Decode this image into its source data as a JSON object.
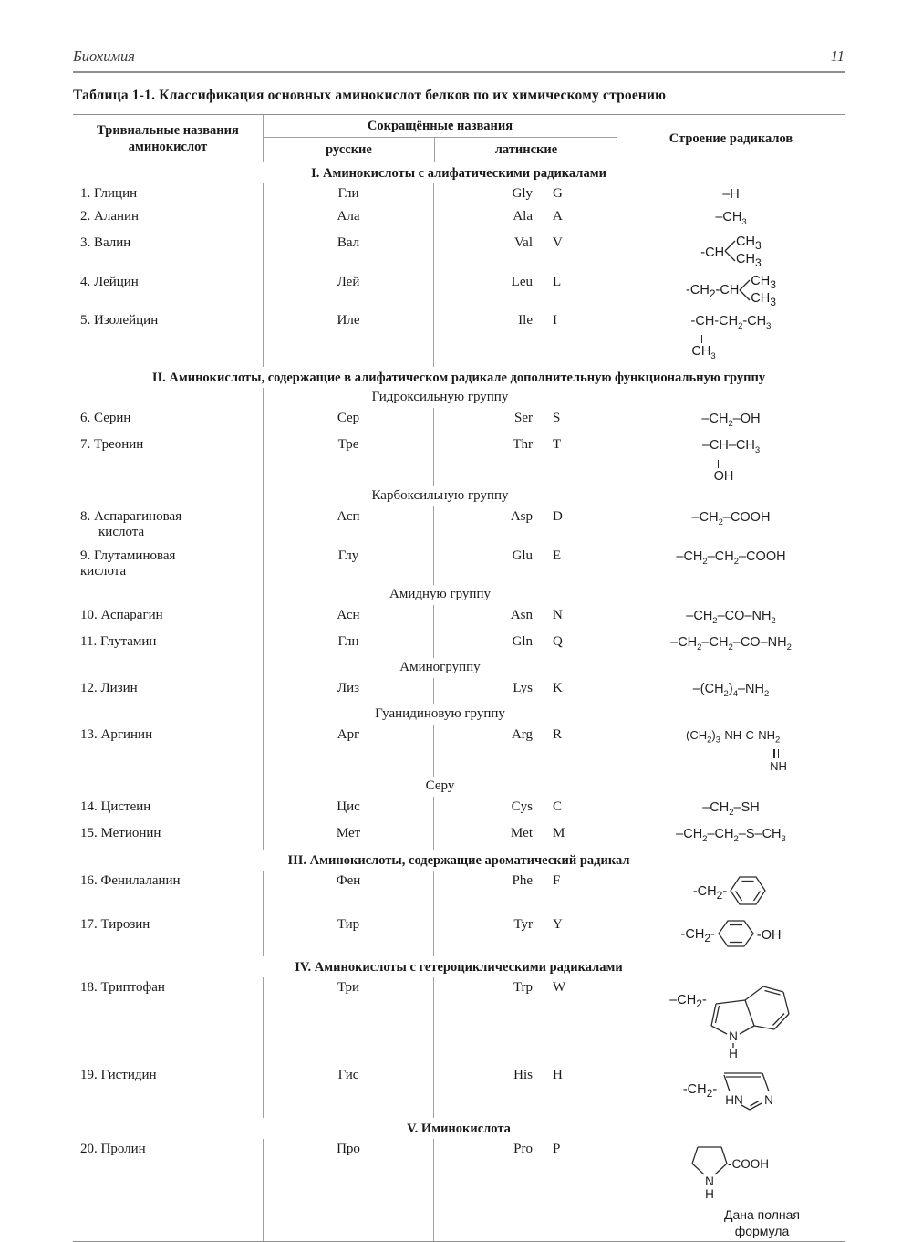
{
  "page": {
    "running_head": "Биохимия",
    "page_number": "11",
    "caption": "Таблица 1-1. Классификация основных аминокислот белков по их химическому строению"
  },
  "table": {
    "header": {
      "col1_line1": "Тривиальные названия",
      "col1_line2": "аминокислот",
      "abbr_group": "Сокращённые названия",
      "col_rus": "русские",
      "col_lat": "латинские",
      "col4": "Строение радикалов"
    },
    "sections": [
      {
        "title": "I. Аминокислоты с алифатическими радикалами",
        "groups": [
          {
            "rows": [
              {
                "id": 1,
                "num": "1.",
                "name": "Глицин",
                "rus": "Гли",
                "lat": "Gly",
                "letter": "G",
                "radical": {
                  "kind": "lines",
                  "lines": [
                    "–H"
                  ]
                }
              },
              {
                "id": 2,
                "num": "2.",
                "name": "Аланин",
                "rus": "Ала",
                "lat": "Ala",
                "letter": "A",
                "radical": {
                  "kind": "lines",
                  "lines": [
                    "–CH3"
                  ]
                }
              },
              {
                "id": 3,
                "num": "3.",
                "name": "Валин",
                "rus": "Вал",
                "lat": "Val",
                "letter": "V",
                "radical": {
                  "kind": "branch",
                  "prefix": "-CH",
                  "top": "CH3",
                  "bottom": "CH3"
                }
              },
              {
                "id": 4,
                "num": "4.",
                "name": "Лейцин",
                "rus": "Лей",
                "lat": "Leu",
                "letter": "L",
                "radical": {
                  "kind": "branch",
                  "prefix": "-CH2-CH ",
                  "top": "CH3",
                  "bottom": "CH3"
                }
              },
              {
                "id": 5,
                "num": "5.",
                "name": "Изолейцин",
                "rus": "Иле",
                "lat": "Ile",
                "letter": "I",
                "radical": {
                  "kind": "lines",
                  "lines": [
                    "-CH-CH2-CH3",
                    "|",
                    "CH3"
                  ]
                }
              }
            ]
          }
        ]
      },
      {
        "title": "II. Аминокислоты, содержащие в алифатическом радикале дополнительную функциональную группу",
        "groups": [
          {
            "subtitle": "Гидроксильную группу",
            "rows": [
              {
                "id": 6,
                "num": "6.",
                "name": "Серин",
                "rus": "Сер",
                "lat": "Ser",
                "letter": "S",
                "radical": {
                  "kind": "lines",
                  "lines": [
                    "–CH2–OH"
                  ]
                }
              },
              {
                "id": 7,
                "num": "7.",
                "name": "Треонин",
                "rus": "Тре",
                "lat": "Thr",
                "letter": "T",
                "radical": {
                  "kind": "lines",
                  "lines": [
                    "–CH–CH3",
                    "|",
                    "OH"
                  ]
                }
              }
            ]
          },
          {
            "subtitle": "Карбоксильную группу",
            "rows": [
              {
                "id": 8,
                "num": "8.",
                "name": "Аспарагиновая",
                "name2": "кислота",
                "indent2": true,
                "rus": "Асп",
                "lat": "Asp",
                "letter": "D",
                "radical": {
                  "kind": "lines",
                  "lines": [
                    "–CH2–COOH"
                  ]
                }
              },
              {
                "id": 9,
                "num": "9.",
                "name": "Глутаминовая",
                "name2": "кислота",
                "rus": "Глу",
                "lat": "Glu",
                "letter": "E",
                "radical": {
                  "kind": "lines",
                  "lines": [
                    "–CH2–CH2–COOH"
                  ]
                }
              }
            ]
          },
          {
            "subtitle": "Амидную группу",
            "rows": [
              {
                "id": 10,
                "num": "10.",
                "name": "Аспарагин",
                "rus": "Асн",
                "lat": "Asn",
                "letter": "N",
                "radical": {
                  "kind": "lines",
                  "lines": [
                    "–CH2–CO–NH2"
                  ]
                }
              },
              {
                "id": 11,
                "num": "11.",
                "name": "Глутамин",
                "rus": "Глн",
                "lat": "Gln",
                "letter": "Q",
                "radical": {
                  "kind": "lines",
                  "lines": [
                    "–CH2–CH2–CO–NH2"
                  ]
                }
              }
            ]
          },
          {
            "subtitle": "Аминогруппу",
            "rows": [
              {
                "id": 12,
                "num": "12.",
                "name": "Лизин",
                "rus": "Лиз",
                "lat": "Lys",
                "letter": "K",
                "radical": {
                  "kind": "lines",
                  "lines": [
                    "–(CH2)4–NH2"
                  ]
                }
              }
            ]
          },
          {
            "subtitle": "Гуанидиновую группу",
            "rows": [
              {
                "id": 13,
                "num": "13.",
                "name": "Аргинин",
                "rus": "Арг",
                "lat": "Arg",
                "letter": "R",
                "radical": {
                  "kind": "lines",
                  "small": true,
                  "lines": [
                    "-(CH2)3-NH-C-NH2",
                    "‖",
                    "NH"
                  ]
                }
              }
            ]
          },
          {
            "subtitle": "Серу",
            "rows": [
              {
                "id": 14,
                "num": "14.",
                "name": "Цистеин",
                "rus": "Цис",
                "lat": "Cys",
                "letter": "C",
                "radical": {
                  "kind": "lines",
                  "lines": [
                    "–CH2–SH"
                  ]
                }
              },
              {
                "id": 15,
                "num": "15.",
                "name": "Метионин",
                "rus": "Мет",
                "lat": "Met",
                "letter": "M",
                "radical": {
                  "kind": "lines",
                  "lines": [
                    "–CH2–CH2–S–CH3"
                  ]
                }
              }
            ]
          }
        ]
      },
      {
        "title": "III. Аминокислоты, содержащие ароматический радикал",
        "groups": [
          {
            "rows": [
              {
                "id": 16,
                "num": "16.",
                "name": "Фенилаланин",
                "rus": "Фен",
                "lat": "Phe",
                "letter": "F",
                "radical": {
                  "kind": "ring",
                  "ring": "benzene",
                  "prefix": "-CH2-"
                }
              },
              {
                "id": 17,
                "num": "17.",
                "name": "Тирозин",
                "rus": "Тир",
                "lat": "Tyr",
                "letter": "Y",
                "radical": {
                  "kind": "ring",
                  "ring": "phenol",
                  "prefix": "-CH2-",
                  "suffix": "-OH"
                }
              }
            ]
          }
        ]
      },
      {
        "title": "IV. Аминокислоты с гетероциклическими радикалами",
        "groups": [
          {
            "rows": [
              {
                "id": 18,
                "num": "18.",
                "name": "Триптофан",
                "rus": "Три",
                "lat": "Trp",
                "letter": "W",
                "radical": {
                  "kind": "ring",
                  "ring": "indole",
                  "prefix": "–CH2-",
                  "n": "N",
                  "h": "H"
                }
              },
              {
                "id": 19,
                "num": "19.",
                "name": "Гистидин",
                "rus": "Гис",
                "lat": "His",
                "letter": "H",
                "radical": {
                  "kind": "ring",
                  "ring": "imidazole",
                  "prefix": "-CH2-",
                  "hn": "HN",
                  "n": "N"
                }
              }
            ]
          }
        ]
      },
      {
        "title": "V. Иминокислота",
        "groups": [
          {
            "rows": [
              {
                "id": 20,
                "num": "20.",
                "name": "Пролин",
                "rus": "Про",
                "lat": "Pro",
                "letter": "P",
                "radical": {
                  "kind": "pro",
                  "suffix": "-COOH",
                  "n": "N",
                  "h": "H",
                  "note": [
                    "Дана полная",
                    "формула"
                  ]
                }
              }
            ]
          }
        ]
      }
    ]
  }
}
